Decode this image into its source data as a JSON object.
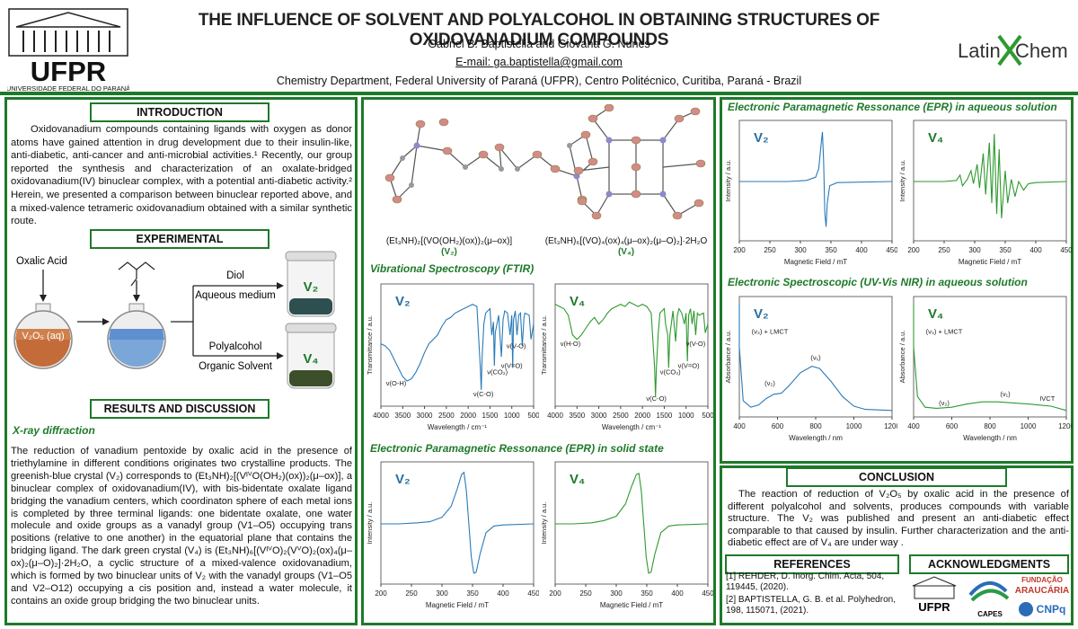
{
  "header": {
    "title": "THE INFLUENCE OF SOLVENT AND POLYALCOHOL IN OBTAINING STRUCTURES OF OXIDOVANADIUM COMPOUNDS",
    "authors": "Gabriel B. Baptistella and Giovana G. Nunes",
    "email": "E-mail: ga.baptistella@gmail.com",
    "department": "Chemistry Department, Federal University of Paraná (UFPR), Centro Politécnico, Curitiba, Paraná - Brazil",
    "ufpr_logo": "UFPR",
    "ufpr_sub": "UNIVERSIDADE FEDERAL DO PARANÁ",
    "latin_logo_a": "Latin",
    "latin_logo_b": "Chem"
  },
  "intro": {
    "title": "INTRODUCTION",
    "text": "Oxidovanadium compounds containing ligands with oxygen as donor atoms have gained attention in drug development due to their insulin-like, anti-diabetic, anti-cancer and anti-microbial activities.¹ Recently, our group reported the synthesis and characterization of an oxalate-bridged oxidovanadium(IV) binuclear complex, with a potential anti-diabetic activity.² Herein, we presented a comparison between binuclear reported above, and a mixed-valence tetrameric oxidovanadium obtained with a similar synthetic route."
  },
  "experimental": {
    "title": "EXPERIMENTAL",
    "oxalic": "Oxalic Acid",
    "v2o5": "V₂O₅ (aq)",
    "diol": "Diol",
    "aqueous": "Aqueous medium",
    "polyalcohol": "Polyalcohol",
    "organic": "Organic Solvent",
    "v2": "V₂",
    "v4": "V₄"
  },
  "results": {
    "title": "RESULTS AND DISCUSSION",
    "xray_title": "X-ray diffraction",
    "text": "The reduction of vanadium pentoxide by oxalic acid in the presence of triethylamine in different conditions originates two crystalline products. The greenish-blue crystal (V₂) corresponds to (Et₃NH)₂[(VᴵⱽO(OH₂)(ox))₂(μ–ox)], a binuclear complex of oxidovanadium(IV), with bis-bidentate oxalate ligand bridging the vanadium centers, which coordinaton sphere of each metal ions is completed by three terminal ligands: one bidentate oxalate, one water molecule and oxide groups as a vanadyl group (V1–O5) occupying trans positions (relative to one another) in the equatorial plane that contains the bridging ligand. The dark green crystal (V₄) is (Et₃NH)₆[(VᴵⱽO)₂(VⱽO)₂(ox)₄(μ–ox)₂(μ–O)₂]·2H₂O, a cyclic structure of a mixed-valence oxidovanadium, which is formed by two binuclear units of V₂ with the vanadyl groups (V1–O5 and V2–O12) occupying a cis position and, instead a water molecule, it contains an oxide group bridging the two binuclear units."
  },
  "structures": {
    "v2_formula": "(Et₃NH)₂[(VO(OH₂)(ox))₂(μ–ox)]",
    "v2_label": "(V₂)",
    "v4_formula": "(Et₃NH)₆[(VO)₄(ox)₄(μ–ox)₂(μ–O)₂]·2H₂O",
    "v4_label": "(V₄)"
  },
  "ftir": {
    "title": "Vibrational Spectroscopy (FTIR)"
  },
  "epr_solid": {
    "title": "Electronic Paramagnetic Ressonance (EPR) in solid state"
  },
  "epr_aq": {
    "title": "Electronic Paramagnetic Ressonance (EPR) in aqueous solution"
  },
  "uvvis": {
    "title": "Electronic Spectroscopic (UV-Vis NIR) in aqueous solution"
  },
  "conclusion": {
    "title": "CONCLUSION",
    "text": "The reaction of reduction of V₂O₅ by oxalic acid in the presence of different polyalcohol and solvents, produces compounds with variable structure. The V₂ was published and present an anti-diabetic effect comparable to that caused by insulin. Further characterization and the anti-diabetic effect are of V₄ are under way ."
  },
  "references": {
    "title": "REFERENCES",
    "ref1": "[1] REHDER, D. Inorg. Chim. Acta, 504, 119445, (2020).",
    "ref2": "[2] BAPTISTELLA, G. B. et al. Polyhedron, 198, 115071, (2021)."
  },
  "ack": {
    "title": "ACKNOWLEDGMENTS",
    "ufpr": "UFPR",
    "capes": "CAPES",
    "fa1": "FUNDAÇÃO",
    "fa2": "ARAUCÁRIA",
    "cnpq": "CNPq"
  },
  "colors": {
    "green": "#1e7a2a",
    "blue": "#2a7ab8",
    "v4green": "#2e9a2e"
  },
  "chart_data": [
    {
      "type": "line",
      "id": "ftir_v2",
      "series_label": "V₂",
      "xlabel": "Wavelength / cm⁻¹",
      "ylabel": "Transmittance / a.u.",
      "xlim": [
        4000,
        500
      ],
      "xticks": [
        4000,
        3500,
        3000,
        2500,
        2000,
        1500,
        1000,
        500
      ],
      "annotations": [
        "ν(O-H)",
        "ν(C-O)",
        "ν(CO₂)",
        "ν(V=O)",
        "ν(V-O)"
      ],
      "points": [
        [
          4000,
          0.52
        ],
        [
          3900,
          0.5
        ],
        [
          3800,
          0.46
        ],
        [
          3700,
          0.38
        ],
        [
          3600,
          0.3
        ],
        [
          3500,
          0.22
        ],
        [
          3400,
          0.18
        ],
        [
          3300,
          0.2
        ],
        [
          3200,
          0.26
        ],
        [
          3100,
          0.34
        ],
        [
          3000,
          0.44
        ],
        [
          2900,
          0.52
        ],
        [
          2800,
          0.56
        ],
        [
          2700,
          0.6
        ],
        [
          2600,
          0.68
        ],
        [
          2500,
          0.74
        ],
        [
          2400,
          0.76
        ],
        [
          2300,
          0.8
        ],
        [
          2200,
          0.82
        ],
        [
          2100,
          0.84
        ],
        [
          2000,
          0.86
        ],
        [
          1900,
          0.88
        ],
        [
          1800,
          0.86
        ],
        [
          1720,
          0.3
        ],
        [
          1700,
          0.1
        ],
        [
          1680,
          0.4
        ],
        [
          1640,
          0.7
        ],
        [
          1600,
          0.8
        ],
        [
          1500,
          0.84
        ],
        [
          1460,
          0.6
        ],
        [
          1420,
          0.72
        ],
        [
          1400,
          0.32
        ],
        [
          1380,
          0.62
        ],
        [
          1300,
          0.78
        ],
        [
          1240,
          0.4
        ],
        [
          1200,
          0.74
        ],
        [
          1160,
          0.82
        ],
        [
          1100,
          0.8
        ],
        [
          1040,
          0.6
        ],
        [
          1000,
          0.78
        ],
        [
          980,
          0.3
        ],
        [
          960,
          0.74
        ],
        [
          920,
          0.82
        ],
        [
          880,
          0.6
        ],
        [
          840,
          0.78
        ],
        [
          800,
          0.8
        ],
        [
          760,
          0.5
        ],
        [
          720,
          0.76
        ],
        [
          700,
          0.8
        ],
        [
          600,
          0.78
        ],
        [
          560,
          0.56
        ],
        [
          500,
          0.7
        ]
      ]
    },
    {
      "type": "line",
      "id": "ftir_v4",
      "series_label": "V₄",
      "xlabel": "Wavelength / cm⁻¹",
      "ylabel": "Transmittance / a.u.",
      "xlim": [
        4000,
        500
      ],
      "xticks": [
        4000,
        3500,
        3000,
        2500,
        2000,
        1500,
        1000,
        500
      ],
      "annotations": [
        "ν(H-O)",
        "ν(C-O)",
        "ν(CO₂)",
        "ν(V=O)",
        "ν(V-O)"
      ],
      "points": [
        [
          4000,
          0.88
        ],
        [
          3900,
          0.86
        ],
        [
          3800,
          0.84
        ],
        [
          3700,
          0.78
        ],
        [
          3600,
          0.6
        ],
        [
          3500,
          0.56
        ],
        [
          3400,
          0.6
        ],
        [
          3300,
          0.66
        ],
        [
          3200,
          0.72
        ],
        [
          3100,
          0.76
        ],
        [
          3000,
          0.7
        ],
        [
          2900,
          0.74
        ],
        [
          2800,
          0.8
        ],
        [
          2700,
          0.84
        ],
        [
          2600,
          0.86
        ],
        [
          2500,
          0.88
        ],
        [
          2400,
          0.86
        ],
        [
          2300,
          0.9
        ],
        [
          2200,
          0.88
        ],
        [
          2100,
          0.86
        ],
        [
          2000,
          0.88
        ],
        [
          1900,
          0.86
        ],
        [
          1800,
          0.8
        ],
        [
          1720,
          0.3
        ],
        [
          1700,
          0.04
        ],
        [
          1680,
          0.3
        ],
        [
          1640,
          0.6
        ],
        [
          1600,
          0.8
        ],
        [
          1500,
          0.84
        ],
        [
          1470,
          0.7
        ],
        [
          1420,
          0.6
        ],
        [
          1400,
          0.3
        ],
        [
          1370,
          0.6
        ],
        [
          1300,
          0.82
        ],
        [
          1240,
          0.54
        ],
        [
          1200,
          0.78
        ],
        [
          1160,
          0.84
        ],
        [
          1100,
          0.8
        ],
        [
          1040,
          0.7
        ],
        [
          1000,
          0.8
        ],
        [
          970,
          0.36
        ],
        [
          940,
          0.78
        ],
        [
          900,
          0.84
        ],
        [
          860,
          0.7
        ],
        [
          820,
          0.82
        ],
        [
          780,
          0.6
        ],
        [
          740,
          0.8
        ],
        [
          700,
          0.78
        ],
        [
          600,
          0.8
        ],
        [
          560,
          0.62
        ],
        [
          500,
          0.7
        ]
      ]
    },
    {
      "type": "line",
      "id": "epr_solid_v2",
      "series_label": "V₂",
      "xlabel": "Magnetic Field / mT",
      "ylabel": "Intensity / a.u.",
      "xlim": [
        200,
        450
      ],
      "xticks": [
        200,
        250,
        300,
        350,
        400,
        450
      ],
      "points": [
        [
          200,
          0.5
        ],
        [
          230,
          0.5
        ],
        [
          260,
          0.51
        ],
        [
          280,
          0.52
        ],
        [
          300,
          0.56
        ],
        [
          315,
          0.66
        ],
        [
          325,
          0.82
        ],
        [
          332,
          0.95
        ],
        [
          336,
          0.97
        ],
        [
          340,
          0.8
        ],
        [
          344,
          0.5
        ],
        [
          348,
          0.2
        ],
        [
          352,
          0.05
        ],
        [
          356,
          0.06
        ],
        [
          362,
          0.22
        ],
        [
          372,
          0.42
        ],
        [
          385,
          0.48
        ],
        [
          400,
          0.49
        ],
        [
          450,
          0.5
        ]
      ]
    },
    {
      "type": "line",
      "id": "epr_solid_v4",
      "series_label": "V₄",
      "xlabel": "Magnetic Field / mT",
      "ylabel": "Intensity / a.u.",
      "xlim": [
        200,
        450
      ],
      "xticks": [
        200,
        250,
        300,
        350,
        400,
        450
      ],
      "points": [
        [
          200,
          0.5
        ],
        [
          230,
          0.5
        ],
        [
          260,
          0.51
        ],
        [
          280,
          0.53
        ],
        [
          300,
          0.57
        ],
        [
          315,
          0.68
        ],
        [
          325,
          0.84
        ],
        [
          333,
          0.95
        ],
        [
          337,
          0.96
        ],
        [
          341,
          0.8
        ],
        [
          345,
          0.5
        ],
        [
          349,
          0.2
        ],
        [
          353,
          0.05
        ],
        [
          357,
          0.06
        ],
        [
          363,
          0.22
        ],
        [
          373,
          0.42
        ],
        [
          386,
          0.48
        ],
        [
          400,
          0.49
        ],
        [
          450,
          0.5
        ]
      ]
    },
    {
      "type": "line",
      "id": "epr_aq_v2",
      "series_label": "V₂",
      "xlabel": "Magnetic Field / mT",
      "ylabel": "Intensity / a.u.",
      "xlim": [
        200,
        450
      ],
      "xticks": [
        200,
        250,
        300,
        350,
        400,
        450
      ],
      "points": [
        [
          200,
          0.5
        ],
        [
          280,
          0.5
        ],
        [
          310,
          0.51
        ],
        [
          325,
          0.54
        ],
        [
          330,
          0.62
        ],
        [
          334,
          0.85
        ],
        [
          336,
          0.96
        ],
        [
          338,
          0.7
        ],
        [
          340,
          0.2
        ],
        [
          342,
          0.08
        ],
        [
          344,
          0.3
        ],
        [
          348,
          0.46
        ],
        [
          360,
          0.49
        ],
        [
          450,
          0.5
        ]
      ]
    },
    {
      "type": "line",
      "id": "epr_aq_v4",
      "series_label": "V₄",
      "xlabel": "Magnetic Field / mT",
      "ylabel": "Intensity / a.u.",
      "xlim": [
        200,
        450
      ],
      "xticks": [
        200,
        250,
        300,
        350,
        400,
        450
      ],
      "points": [
        [
          200,
          0.5
        ],
        [
          250,
          0.5
        ],
        [
          270,
          0.51
        ],
        [
          276,
          0.56
        ],
        [
          280,
          0.46
        ],
        [
          288,
          0.52
        ],
        [
          294,
          0.6
        ],
        [
          298,
          0.48
        ],
        [
          304,
          0.66
        ],
        [
          308,
          0.44
        ],
        [
          314,
          0.76
        ],
        [
          318,
          0.38
        ],
        [
          324,
          0.86
        ],
        [
          328,
          0.3
        ],
        [
          332,
          0.94
        ],
        [
          336,
          0.2
        ],
        [
          340,
          0.8
        ],
        [
          344,
          0.16
        ],
        [
          350,
          0.6
        ],
        [
          354,
          0.3
        ],
        [
          360,
          0.52
        ],
        [
          366,
          0.36
        ],
        [
          372,
          0.5
        ],
        [
          380,
          0.42
        ],
        [
          388,
          0.48
        ],
        [
          400,
          0.49
        ],
        [
          450,
          0.5
        ]
      ]
    },
    {
      "type": "line",
      "id": "uv_v2",
      "series_label": "V₂",
      "xlabel": "Wavelength / nm",
      "ylabel": "Absorbance / a.u.",
      "xlim": [
        400,
        1200
      ],
      "xticks": [
        400,
        600,
        800,
        1000,
        1200
      ],
      "annotations": [
        "(ν₃) + LMCT",
        "(ν₂)",
        "(ν₁)"
      ],
      "points": [
        [
          350,
          1.0
        ],
        [
          380,
          0.6
        ],
        [
          420,
          0.1
        ],
        [
          460,
          0.04
        ],
        [
          500,
          0.06
        ],
        [
          540,
          0.12
        ],
        [
          580,
          0.16
        ],
        [
          620,
          0.17
        ],
        [
          660,
          0.24
        ],
        [
          720,
          0.36
        ],
        [
          780,
          0.42
        ],
        [
          820,
          0.4
        ],
        [
          880,
          0.28
        ],
        [
          940,
          0.14
        ],
        [
          1000,
          0.05
        ],
        [
          1060,
          0.02
        ],
        [
          1200,
          0.01
        ]
      ]
    },
    {
      "type": "line",
      "id": "uv_v4",
      "series_label": "V₄",
      "xlabel": "Wavelength / nm",
      "ylabel": "Absorbance / a.u.",
      "xlim": [
        400,
        1200
      ],
      "xticks": [
        400,
        600,
        800,
        1000,
        1200
      ],
      "annotations": [
        "(ν₃) + LMCT",
        "(ν₂)",
        "(ν₁)",
        "IVCT"
      ],
      "points": [
        [
          350,
          1.0
        ],
        [
          380,
          0.6
        ],
        [
          420,
          0.14
        ],
        [
          460,
          0.04
        ],
        [
          520,
          0.03
        ],
        [
          600,
          0.04
        ],
        [
          680,
          0.07
        ],
        [
          760,
          0.09
        ],
        [
          840,
          0.09
        ],
        [
          920,
          0.08
        ],
        [
          1000,
          0.07
        ],
        [
          1060,
          0.06
        ],
        [
          1120,
          0.05
        ],
        [
          1200,
          0.01
        ]
      ]
    }
  ]
}
